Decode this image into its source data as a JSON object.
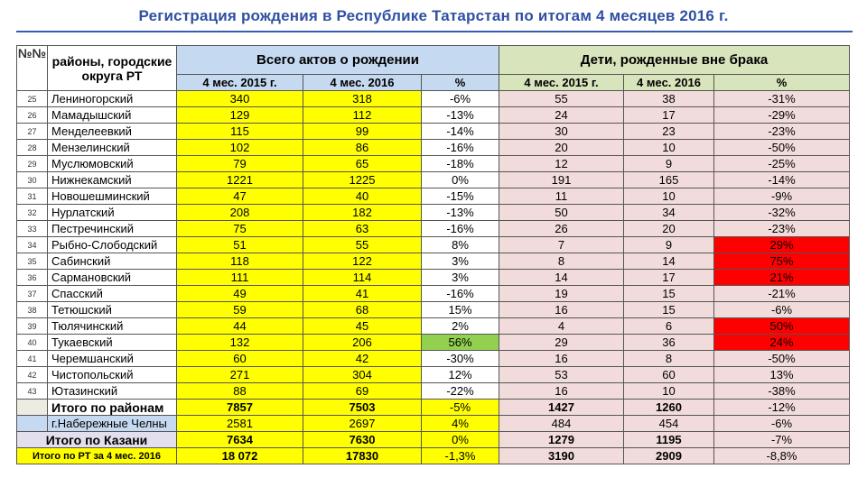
{
  "title": "Регистрация рождения в Республике Татарстан по итогам 4 месяцев 2016 г.",
  "header": {
    "num": "№№",
    "district": "районы, городские округа РТ",
    "group1": "Всего актов о рождении",
    "group2": "Дети, рожденные вне брака",
    "sub": [
      "4 мес. 2015 г.",
      "4 мес. 2016",
      "%",
      "4 мес. 2015 г.",
      "4 мес. 2016",
      "%"
    ]
  },
  "rows": [
    {
      "n": "25",
      "name": "Лениногорский",
      "v": [
        "340",
        "318",
        "-6%",
        "55",
        "38",
        "-31%"
      ]
    },
    {
      "n": "26",
      "name": "Мамадышский",
      "v": [
        "129",
        "112",
        "-13%",
        "24",
        "17",
        "-29%"
      ]
    },
    {
      "n": "27",
      "name": "Менделеевкий",
      "v": [
        "115",
        "99",
        "-14%",
        "30",
        "23",
        "-23%"
      ]
    },
    {
      "n": "28",
      "name": "Мензелинский",
      "v": [
        "102",
        "86",
        "-16%",
        "20",
        "10",
        "-50%"
      ]
    },
    {
      "n": "29",
      "name": "Муслюмовский",
      "v": [
        "79",
        "65",
        "-18%",
        "12",
        "9",
        "-25%"
      ]
    },
    {
      "n": "30",
      "name": "Нижнекамский",
      "v": [
        "1221",
        "1225",
        "0%",
        "191",
        "165",
        "-14%"
      ]
    },
    {
      "n": "31",
      "name": "Новошешминский",
      "v": [
        "47",
        "40",
        "-15%",
        "11",
        "10",
        "-9%"
      ]
    },
    {
      "n": "32",
      "name": "Нурлатский",
      "v": [
        "208",
        "182",
        "-13%",
        "50",
        "34",
        "-32%"
      ]
    },
    {
      "n": "33",
      "name": "Пестречинский",
      "v": [
        "75",
        "63",
        "-16%",
        "26",
        "20",
        "-23%"
      ]
    },
    {
      "n": "34",
      "name": "Рыбно-Слободский",
      "v": [
        "51",
        "55",
        "8%",
        "7",
        "9",
        "29%"
      ]
    },
    {
      "n": "35",
      "name": "Сабинский",
      "v": [
        "118",
        "122",
        "3%",
        "8",
        "14",
        "75%"
      ]
    },
    {
      "n": "36",
      "name": "Сармановский",
      "v": [
        "111",
        "114",
        "3%",
        "14",
        "17",
        "21%"
      ]
    },
    {
      "n": "37",
      "name": "Спасский",
      "v": [
        "49",
        "41",
        "-16%",
        "19",
        "15",
        "-21%"
      ]
    },
    {
      "n": "38",
      "name": "Тетюшский",
      "v": [
        "59",
        "68",
        "15%",
        "16",
        "15",
        "-6%"
      ]
    },
    {
      "n": "39",
      "name": "Тюлячинский",
      "v": [
        "44",
        "45",
        "2%",
        "4",
        "6",
        "50%"
      ]
    },
    {
      "n": "40",
      "name": "Тукаевский",
      "v": [
        "132",
        "206",
        "56%",
        "29",
        "36",
        "24%"
      ]
    },
    {
      "n": "41",
      "name": "Черемшанский",
      "v": [
        "60",
        "42",
        "-30%",
        "16",
        "8",
        "-50%"
      ]
    },
    {
      "n": "42",
      "name": "Чистопольский",
      "v": [
        "271",
        "304",
        "12%",
        "53",
        "60",
        "13%"
      ]
    },
    {
      "n": "43",
      "name": "Ютазинский",
      "v": [
        "88",
        "69",
        "-22%",
        "16",
        "10",
        "-38%"
      ]
    }
  ],
  "totals": [
    {
      "name": "Итого по районам",
      "v": [
        "7857",
        "7503",
        "-5%",
        "1427",
        "1260",
        "-12%"
      ]
    },
    {
      "name": "г.Набережные Челны",
      "v": [
        "2581",
        "2697",
        "4%",
        "484",
        "454",
        "-6%"
      ]
    },
    {
      "name": "Итого по Казани",
      "v": [
        "7634",
        "7630",
        "0%",
        "1279",
        "1195",
        "-7%"
      ]
    },
    {
      "name": "Итого по РТ за 4 мес. 2016",
      "v": [
        "18 072",
        "17830",
        "-1,3%",
        "3190",
        "2909",
        "-8,8%"
      ]
    }
  ],
  "highlight": {
    "red_rows": [
      "34",
      "35",
      "36",
      "39",
      "40"
    ],
    "green_rows": [
      "40"
    ]
  }
}
